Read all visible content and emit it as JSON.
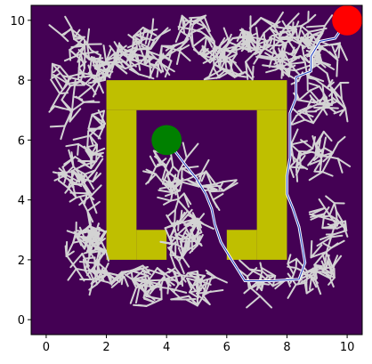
{
  "chart_data": {
    "type": "scatter",
    "title": "",
    "xlabel": "",
    "ylabel": "",
    "xlim": [
      -0.5,
      10.5
    ],
    "ylim": [
      -0.5,
      10.5
    ],
    "x_ticks": [
      0,
      2,
      4,
      6,
      8,
      10
    ],
    "y_ticks": [
      0,
      2,
      4,
      6,
      8,
      10
    ],
    "grid": false,
    "background_color": "#440154",
    "obstacle_color": "#bfbf00",
    "tree_color": "#d3d3d3",
    "path_color": "#1f3fbf",
    "start": {
      "x": 4,
      "y": 6,
      "color": "#008000"
    },
    "goal": {
      "x": 10,
      "y": 10,
      "color": "#ff0000"
    },
    "obstacles": [
      {
        "x": 2,
        "y": 7,
        "w": 6,
        "h": 1
      },
      {
        "x": 2,
        "y": 2,
        "w": 1,
        "h": 5
      },
      {
        "x": 7,
        "y": 2,
        "w": 1,
        "h": 5
      },
      {
        "x": 3,
        "y": 2,
        "w": 1,
        "h": 1
      },
      {
        "x": 6,
        "y": 2,
        "w": 1,
        "h": 1
      }
    ],
    "path": [
      [
        4.0,
        6.0
      ],
      [
        4.3,
        5.6
      ],
      [
        4.6,
        5.2
      ],
      [
        5.0,
        4.7
      ],
      [
        5.3,
        4.2
      ],
      [
        5.5,
        3.7
      ],
      [
        5.6,
        3.2
      ],
      [
        5.8,
        2.6
      ],
      [
        6.1,
        2.1
      ],
      [
        6.6,
        1.3
      ],
      [
        7.5,
        1.3
      ],
      [
        8.4,
        1.35
      ],
      [
        8.6,
        1.9
      ],
      [
        8.5,
        2.5
      ],
      [
        8.4,
        3.1
      ],
      [
        8.2,
        3.7
      ],
      [
        8.0,
        4.2
      ],
      [
        8.0,
        4.8
      ],
      [
        8.1,
        5.4
      ],
      [
        8.1,
        6.2
      ],
      [
        8.1,
        6.9
      ],
      [
        8.3,
        7.4
      ],
      [
        8.3,
        8.1
      ],
      [
        8.8,
        8.3
      ],
      [
        8.8,
        8.8
      ],
      [
        9.1,
        9.3
      ],
      [
        9.6,
        9.4
      ],
      [
        10.0,
        10.0
      ]
    ]
  }
}
